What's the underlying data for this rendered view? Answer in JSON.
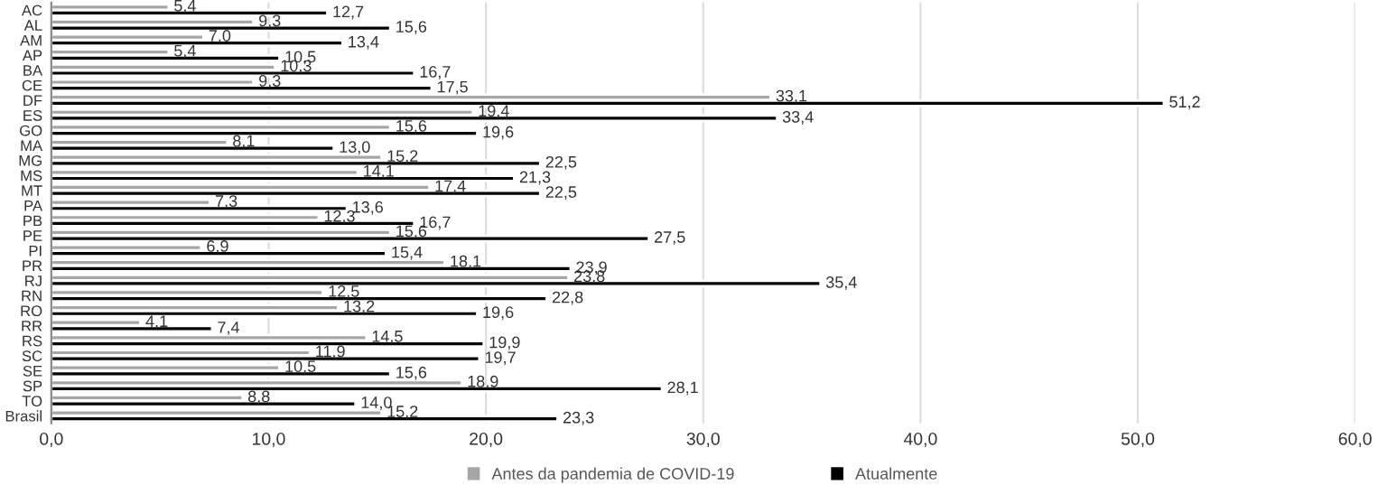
{
  "chart_data": {
    "type": "bar",
    "orientation": "horizontal",
    "categories": [
      "AC",
      "AL",
      "AM",
      "AP",
      "BA",
      "CE",
      "DF",
      "ES",
      "GO",
      "MA",
      "MG",
      "MS",
      "MT",
      "PA",
      "PB",
      "PE",
      "PI",
      "PR",
      "RJ",
      "RN",
      "RO",
      "RR",
      "RS",
      "SC",
      "SE",
      "SP",
      "TO",
      "Brasil"
    ],
    "series": [
      {
        "name": "Antes da pandemia de COVID-19",
        "color": "#a6a6a6",
        "values": [
          5.4,
          9.3,
          7.0,
          5.4,
          10.3,
          9.3,
          33.1,
          19.4,
          15.6,
          8.1,
          15.2,
          14.1,
          17.4,
          7.3,
          12.3,
          15.6,
          6.9,
          18.1,
          23.8,
          12.5,
          13.2,
          4.1,
          14.5,
          11.9,
          10.5,
          18.9,
          8.8,
          15.2
        ],
        "value_labels": [
          "5,4",
          "9,3",
          "7,0",
          "5,4",
          "10,3",
          "9,3",
          "33,1",
          "19,4",
          "15,6",
          "8,1",
          "15,2",
          "14,1",
          "17,4",
          "7,3",
          "12,3",
          "15,6",
          "6,9",
          "18,1",
          "23,8",
          "12,5",
          "13,2",
          "4,1",
          "14,5",
          "11,9",
          "10,5",
          "18,9",
          "8,8",
          "15,2"
        ]
      },
      {
        "name": "Atualmente",
        "color": "#000000",
        "values": [
          12.7,
          15.6,
          13.4,
          10.5,
          16.7,
          17.5,
          51.2,
          33.4,
          19.6,
          13.0,
          22.5,
          21.3,
          22.5,
          13.6,
          16.7,
          27.5,
          15.4,
          23.9,
          35.4,
          22.8,
          19.6,
          7.4,
          19.9,
          19.7,
          15.6,
          28.1,
          14.0,
          23.3
        ],
        "value_labels": [
          "12,7",
          "15,6",
          "13,4",
          "10,5",
          "16,7",
          "17,5",
          "51,2",
          "33,4",
          "19,6",
          "13,0",
          "22,5",
          "21,3",
          "22,5",
          "13,6",
          "16,7",
          "27,5",
          "15,4",
          "23,9",
          "35,4",
          "22,8",
          "19,6",
          "7,4",
          "19,9",
          "19,7",
          "15,6",
          "28,1",
          "14,0",
          "23,3"
        ]
      }
    ],
    "xlim": [
      0,
      60
    ],
    "xticks": [
      {
        "value": 0,
        "label": "0,0"
      },
      {
        "value": 10,
        "label": "10,0"
      },
      {
        "value": 20,
        "label": "20,0"
      },
      {
        "value": 30,
        "label": "30,0"
      },
      {
        "value": 40,
        "label": "40,0"
      },
      {
        "value": 50,
        "label": "50,0"
      },
      {
        "value": 60,
        "label": "60,0"
      }
    ],
    "grid": "x",
    "legend": "bottom"
  }
}
